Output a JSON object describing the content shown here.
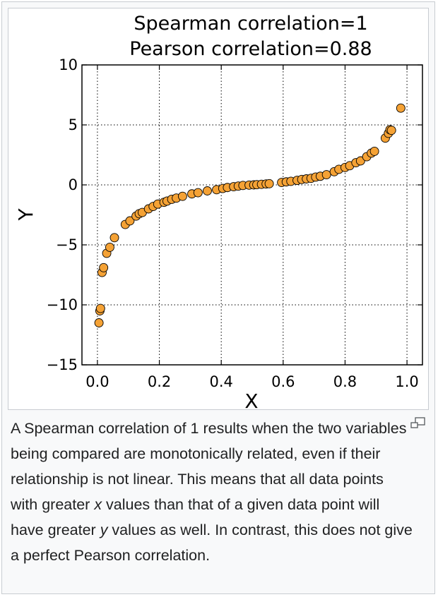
{
  "chart_data": {
    "type": "scatter",
    "title": [
      "Spearman correlation=1",
      "Pearson correlation=0.88"
    ],
    "xlabel": "X",
    "ylabel": "Y",
    "xlim": [
      -0.05,
      1.05
    ],
    "ylim": [
      -15,
      10
    ],
    "xticks": [
      0.0,
      0.2,
      0.4,
      0.6,
      0.8,
      1.0
    ],
    "xtick_labels": [
      "0.0",
      "0.2",
      "0.4",
      "0.6",
      "0.8",
      "1.0"
    ],
    "yticks": [
      10,
      5,
      0,
      -5,
      -10,
      -15
    ],
    "ytick_labels": [
      "10",
      "5",
      "0",
      "−5",
      "−10",
      "−15"
    ],
    "grid": true,
    "marker_color": "#f5a235",
    "marker_edge": "#000000",
    "points": [
      [
        0.005,
        -11.5
      ],
      [
        0.008,
        -10.5
      ],
      [
        0.01,
        -10.3
      ],
      [
        0.015,
        -7.3
      ],
      [
        0.02,
        -6.9
      ],
      [
        0.03,
        -5.7
      ],
      [
        0.04,
        -5.2
      ],
      [
        0.055,
        -4.4
      ],
      [
        0.09,
        -3.3
      ],
      [
        0.105,
        -3.0
      ],
      [
        0.125,
        -2.6
      ],
      [
        0.135,
        -2.4
      ],
      [
        0.145,
        -2.3
      ],
      [
        0.165,
        -2.0
      ],
      [
        0.18,
        -1.8
      ],
      [
        0.195,
        -1.6
      ],
      [
        0.215,
        -1.45
      ],
      [
        0.225,
        -1.35
      ],
      [
        0.24,
        -1.2
      ],
      [
        0.255,
        -1.1
      ],
      [
        0.275,
        -0.95
      ],
      [
        0.305,
        -0.75
      ],
      [
        0.325,
        -0.65
      ],
      [
        0.355,
        -0.5
      ],
      [
        0.385,
        -0.4
      ],
      [
        0.405,
        -0.3
      ],
      [
        0.42,
        -0.22
      ],
      [
        0.44,
        -0.15
      ],
      [
        0.455,
        -0.1
      ],
      [
        0.47,
        -0.05
      ],
      [
        0.49,
        -0.02
      ],
      [
        0.505,
        0.0
      ],
      [
        0.515,
        0.02
      ],
      [
        0.53,
        0.05
      ],
      [
        0.545,
        0.08
      ],
      [
        0.555,
        0.1
      ],
      [
        0.595,
        0.2
      ],
      [
        0.61,
        0.25
      ],
      [
        0.625,
        0.3
      ],
      [
        0.645,
        0.38
      ],
      [
        0.66,
        0.45
      ],
      [
        0.675,
        0.5
      ],
      [
        0.69,
        0.55
      ],
      [
        0.705,
        0.65
      ],
      [
        0.72,
        0.72
      ],
      [
        0.74,
        0.85
      ],
      [
        0.765,
        1.1
      ],
      [
        0.78,
        1.3
      ],
      [
        0.8,
        1.45
      ],
      [
        0.815,
        1.6
      ],
      [
        0.835,
        1.85
      ],
      [
        0.85,
        2.0
      ],
      [
        0.87,
        2.35
      ],
      [
        0.885,
        2.65
      ],
      [
        0.895,
        2.8
      ],
      [
        0.93,
        3.9
      ],
      [
        0.94,
        4.3
      ],
      [
        0.945,
        4.6
      ],
      [
        0.95,
        4.55
      ],
      [
        0.98,
        6.4
      ]
    ]
  },
  "caption": {
    "part1": "A Spearman correlation of 1 results when the two variables being compared are monotonically related, even if their relationship is not linear. This means that all data points with greater ",
    "var_x": "x",
    "part2": " values than that of a given data point will have greater ",
    "var_y": "y",
    "part3": " values as well. In contrast, this does not give a perfect Pearson correlation."
  },
  "icons": {
    "enlarge": "magnify-clip-icon"
  }
}
